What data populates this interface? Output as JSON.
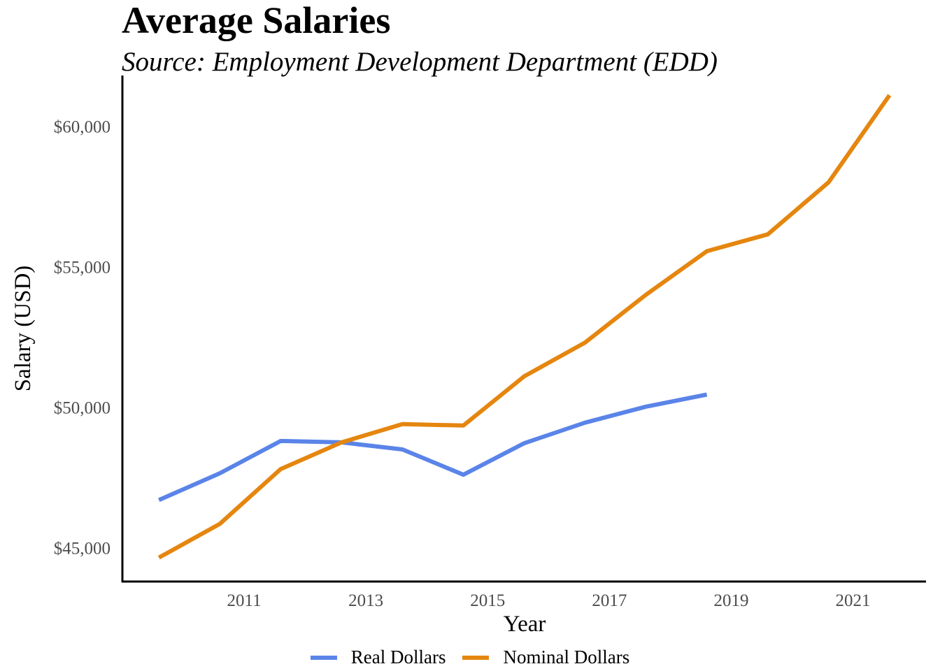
{
  "chart_data": {
    "type": "line",
    "title": "Average Salaries",
    "subtitle": "Source: Employment Development Department (EDD)",
    "xlabel": "Year",
    "ylabel": "Salary (USD)",
    "xlim": [
      2009.0,
      2022.2
    ],
    "ylim": [
      43800,
      61800
    ],
    "x_ticks": [
      2011,
      2013,
      2015,
      2017,
      2019,
      2021
    ],
    "y_ticks": [
      45000,
      50000,
      55000,
      60000
    ],
    "y_tick_labels": [
      "$45,000",
      "$50,000",
      "$55,000",
      "$60,000"
    ],
    "grid": false,
    "legend_position": "bottom",
    "series": [
      {
        "name": "Real Dollars",
        "color": "#5a84e8",
        "x": [
          2009.6,
          2010.6,
          2011.6,
          2012.6,
          2013.6,
          2014.6,
          2015.6,
          2016.6,
          2017.6,
          2018.6
        ],
        "values": [
          46700,
          47650,
          48800,
          48750,
          48500,
          47600,
          48720,
          49450,
          50020,
          50450
        ]
      },
      {
        "name": "Nominal Dollars",
        "color": "#e5860f",
        "x": [
          2009.6,
          2010.6,
          2011.6,
          2012.6,
          2013.6,
          2014.6,
          2015.6,
          2016.6,
          2017.6,
          2018.6,
          2019.6,
          2020.6,
          2021.6
        ],
        "values": [
          44650,
          45850,
          47800,
          48750,
          49400,
          49350,
          51100,
          52300,
          54000,
          55550,
          56150,
          58000,
          61100
        ]
      }
    ]
  }
}
